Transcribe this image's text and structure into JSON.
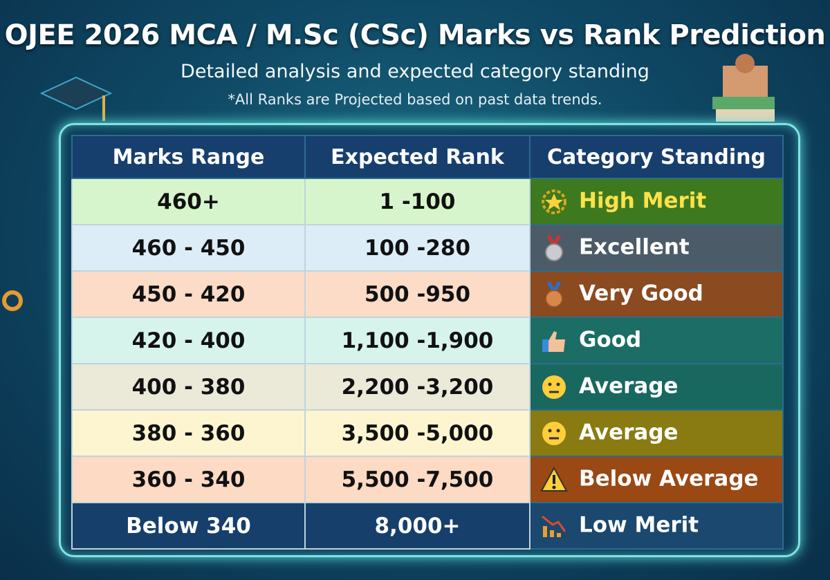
{
  "header": {
    "title": "OJEE 2026 MCA / M.Sc (CSc) Marks vs Rank Prediction",
    "subtitle": "Detailed analysis and expected category standing",
    "note": "*All Ranks are Projected based on past data trends."
  },
  "table": {
    "headers": [
      "Marks Range",
      "Expected Rank",
      "Category Standing"
    ],
    "rows": [
      [
        "460+",
        "1 -100",
        "High Merit"
      ],
      [
        "460 - 450",
        "100 -280",
        "Excellent"
      ],
      [
        "450 - 420",
        "500 -950",
        "Very Good"
      ],
      [
        "420 - 400",
        "1,100 -1,900",
        "Good"
      ],
      [
        "400 - 380",
        "2,200 -3,200",
        "Average"
      ],
      [
        "380 - 360",
        "3,500 -5,000",
        "Average"
      ],
      [
        "360 - 340",
        "5,500 -7,500",
        "Below Average"
      ],
      [
        "Below 340",
        "8,000+",
        "Low Merit"
      ]
    ]
  }
}
